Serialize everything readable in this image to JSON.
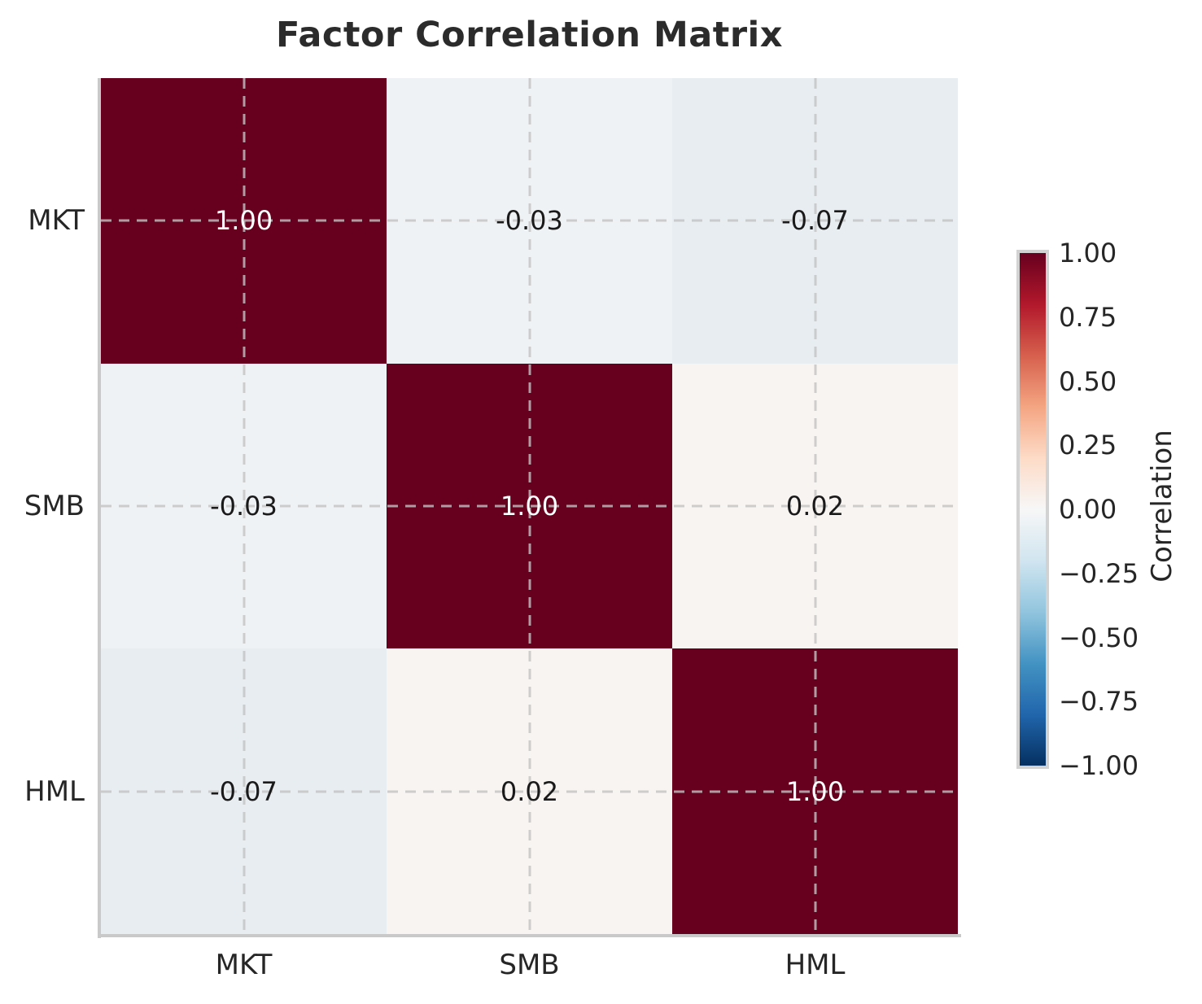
{
  "chart_data": {
    "type": "heatmap",
    "title": "Factor Correlation Matrix",
    "categories": [
      "MKT",
      "SMB",
      "HML"
    ],
    "matrix": [
      [
        1.0,
        -0.03,
        -0.07
      ],
      [
        -0.03,
        1.0,
        0.02
      ],
      [
        -0.07,
        0.02,
        1.0
      ]
    ],
    "cells": [
      {
        "row": 0,
        "col": 0,
        "label": "1.00",
        "bg": "#67001f",
        "fg": "#ffffff"
      },
      {
        "row": 0,
        "col": 1,
        "label": "-0.03",
        "bg": "#eff2f5",
        "fg": "#1a1a1a"
      },
      {
        "row": 0,
        "col": 2,
        "label": "-0.07",
        "bg": "#e7edf1",
        "fg": "#1a1a1a"
      },
      {
        "row": 1,
        "col": 0,
        "label": "-0.03",
        "bg": "#eff2f5",
        "fg": "#1a1a1a"
      },
      {
        "row": 1,
        "col": 1,
        "label": "1.00",
        "bg": "#67001f",
        "fg": "#ffffff"
      },
      {
        "row": 1,
        "col": 2,
        "label": "0.02",
        "bg": "#f8f4f1",
        "fg": "#1a1a1a"
      },
      {
        "row": 2,
        "col": 0,
        "label": "-0.07",
        "bg": "#e7edf1",
        "fg": "#1a1a1a"
      },
      {
        "row": 2,
        "col": 1,
        "label": "0.02",
        "bg": "#f8f4f1",
        "fg": "#1a1a1a"
      },
      {
        "row": 2,
        "col": 2,
        "label": "1.00",
        "bg": "#67001f",
        "fg": "#ffffff"
      }
    ],
    "grid": "dashed",
    "colorbar": {
      "label": "Correlation",
      "range": [
        -1,
        1
      ],
      "colormap": "RdBu_r",
      "tick_labels": [
        "1.00",
        "0.75",
        "0.50",
        "0.25",
        "0.00",
        "−0.25",
        "−0.50",
        "−0.75",
        "−1.00"
      ],
      "gradient_top_to_bottom": [
        "#67001f",
        "#b2182b",
        "#d6604d",
        "#f4a582",
        "#fddbc7",
        "#f7f7f7",
        "#d1e5f0",
        "#92c5de",
        "#4393c3",
        "#2166ac",
        "#053061"
      ]
    },
    "colors": {
      "diagonal_cell": "#67001f",
      "spine": "#c9c9c9",
      "gridline": "#c3c3c3",
      "title_text": "#2b2b2b",
      "tick_text": "#262626"
    }
  }
}
